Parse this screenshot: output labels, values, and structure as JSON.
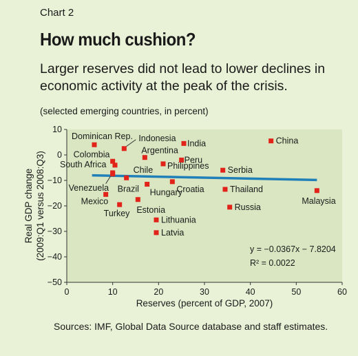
{
  "header": {
    "chart_number": "Chart 2",
    "title": "How much cushion?",
    "subtitle": "Larger reserves did not lead to lower declines in economic activity at the peak of the crisis.",
    "note": "(selected emerging countries, in percent)"
  },
  "footer": {
    "source": "Sources: IMF, Global Data Source database and staff estimates."
  },
  "colors": {
    "background": "#e9f1d6",
    "plot_area": "#d9e6c1",
    "marker": "#e2231a",
    "trendline": "#1f7fb8"
  },
  "chart_data": {
    "type": "scatter",
    "xlabel": "Reserves (percent of GDP, 2007)",
    "ylabel_lines": [
      "Real GDP change",
      "(2009:Q1 versus 2008:Q3)"
    ],
    "xlim": [
      0,
      60
    ],
    "ylim": [
      -50,
      10
    ],
    "xticks": [
      0,
      10,
      20,
      30,
      40,
      50,
      60
    ],
    "yticks": [
      10,
      0,
      -10,
      -20,
      -30,
      -40,
      -50
    ],
    "xtick_labels": [
      "0",
      "10",
      "20",
      "30",
      "40",
      "50",
      "60"
    ],
    "ytick_labels": [
      "10",
      "0",
      "−10",
      "−20",
      "−30",
      "−40",
      "−50"
    ],
    "grid": false,
    "points": [
      {
        "label": "Dominican Rep.",
        "x": 6,
        "y": 4
      },
      {
        "label": "Indonesia",
        "x": 12.5,
        "y": 2.5
      },
      {
        "label": "India",
        "x": 25.5,
        "y": 4.5
      },
      {
        "label": "China",
        "x": 44.5,
        "y": 5.5
      },
      {
        "label": "Colombia",
        "x": 10,
        "y": -2.5
      },
      {
        "label": "Argentina",
        "x": 17,
        "y": -1
      },
      {
        "label": "Peru",
        "x": 25,
        "y": -2
      },
      {
        "label": "South Africa",
        "x": 10.5,
        "y": -4
      },
      {
        "label": "Chile",
        "x": 10,
        "y": -7
      },
      {
        "label": "Philippines",
        "x": 21,
        "y": -3.5
      },
      {
        "label": "Serbia",
        "x": 34,
        "y": -6
      },
      {
        "label": "Venezuela",
        "x": 10,
        "y": -7.5
      },
      {
        "label": "Brazil",
        "x": 13,
        "y": -9
      },
      {
        "label": "Croatia",
        "x": 23,
        "y": -10.5
      },
      {
        "label": "Hungary",
        "x": 17.5,
        "y": -11.5
      },
      {
        "label": "Thailand",
        "x": 34.5,
        "y": -13.5
      },
      {
        "label": "Malaysia",
        "x": 54.5,
        "y": -14
      },
      {
        "label": "Mexico",
        "x": 8.5,
        "y": -15.5
      },
      {
        "label": "Estonia",
        "x": 15.5,
        "y": -17.5
      },
      {
        "label": "Turkey",
        "x": 11.5,
        "y": -19.5
      },
      {
        "label": "Russia",
        "x": 35.5,
        "y": -20.5
      },
      {
        "label": "Lithuania",
        "x": 19.5,
        "y": -25.5
      },
      {
        "label": "Latvia",
        "x": 19.5,
        "y": -30.5
      }
    ],
    "trendline": {
      "slope": -0.0367,
      "intercept": -7.8204,
      "x_range": [
        5.5,
        54.5
      ]
    },
    "annotations": {
      "equation": "y = −0.0367x − 7.8204",
      "r_squared": "R² = 0.0022"
    }
  }
}
